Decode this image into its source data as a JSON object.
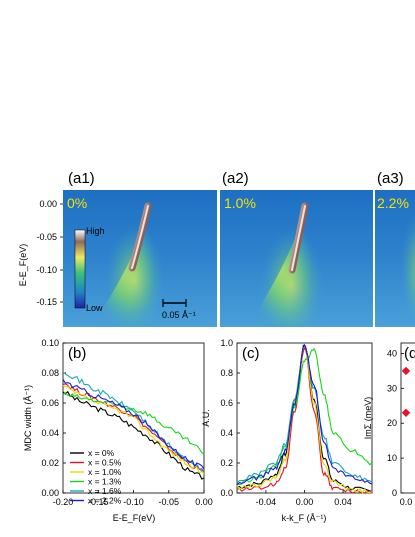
{
  "figure": {
    "labels": {
      "a1": "(a1)",
      "a2": "(a2)",
      "a3": "(a3)",
      "b": "(b)",
      "c": "(c)",
      "d": "(d"
    }
  },
  "panel_a": {
    "ylabel": "E-E_F(eV)",
    "yticks": [
      "0.00",
      "-0.05",
      "-0.10",
      "-0.15"
    ],
    "dopings": [
      "0%",
      "1.0%",
      "2.2%"
    ],
    "colorbar_high": "High",
    "colorbar_low": "Low",
    "scalebar_label": "0.05 Å⁻¹"
  },
  "chart_data": [
    {
      "id": "b",
      "type": "line",
      "title": "",
      "xlabel": "E-E_F(eV)",
      "ylabel": "MDC width (Å⁻¹)",
      "xlim": [
        -0.2,
        0.0
      ],
      "ylim": [
        0.0,
        0.1
      ],
      "xticks": [
        "-0.20",
        "-0.15",
        "-0.10",
        "-0.05",
        "0.00"
      ],
      "yticks": [
        "0.00",
        "0.02",
        "0.04",
        "0.06",
        "0.08",
        "0.10"
      ],
      "legend_position": "bottom-left",
      "x": [
        -0.2,
        -0.18,
        -0.16,
        -0.14,
        -0.12,
        -0.1,
        -0.08,
        -0.06,
        -0.04,
        -0.02,
        0.0
      ],
      "series": [
        {
          "name": "x = 0%",
          "color": "#000000",
          "values": [
            0.068,
            0.062,
            0.058,
            0.054,
            0.05,
            0.044,
            0.038,
            0.03,
            0.022,
            0.014,
            0.01
          ]
        },
        {
          "name": "x = 0.5%",
          "color": "#e8112d",
          "values": [
            0.074,
            0.068,
            0.064,
            0.06,
            0.056,
            0.052,
            0.043,
            0.034,
            0.026,
            0.019,
            0.014
          ]
        },
        {
          "name": "x = 1.0%",
          "color": "#e6d800",
          "values": [
            0.071,
            0.066,
            0.062,
            0.058,
            0.055,
            0.05,
            0.041,
            0.032,
            0.025,
            0.018,
            0.013
          ]
        },
        {
          "name": "x = 1.3%",
          "color": "#17d817",
          "values": [
            0.066,
            0.064,
            0.062,
            0.06,
            0.058,
            0.056,
            0.053,
            0.046,
            0.04,
            0.034,
            0.026
          ]
        },
        {
          "name": "x = 1.6%",
          "color": "#1aa7b5",
          "values": [
            0.082,
            0.076,
            0.07,
            0.066,
            0.06,
            0.055,
            0.046,
            0.036,
            0.028,
            0.02,
            0.015
          ]
        },
        {
          "name": "x = 2.2%",
          "color": "#1a1ad0",
          "values": [
            0.075,
            0.07,
            0.066,
            0.062,
            0.058,
            0.053,
            0.045,
            0.036,
            0.028,
            0.021,
            0.016
          ]
        }
      ]
    },
    {
      "id": "c",
      "type": "line",
      "title": "",
      "xlabel": "k-k_F (Å⁻¹)",
      "ylabel": "A.U.",
      "xlim": [
        -0.07,
        0.07
      ],
      "ylim": [
        0.0,
        1.0
      ],
      "xticks": [
        "-0.04",
        "0.00",
        "0.04"
      ],
      "yticks": [
        "0.0",
        "0.2",
        "0.4",
        "0.6",
        "0.8",
        "1.0"
      ],
      "x": [
        -0.07,
        -0.05,
        -0.03,
        -0.02,
        -0.01,
        0.0,
        0.01,
        0.02,
        0.03,
        0.05,
        0.07
      ],
      "series": [
        {
          "color": "#000000",
          "values": [
            0.04,
            0.06,
            0.12,
            0.26,
            0.62,
            0.99,
            0.62,
            0.24,
            0.08,
            0.03,
            0.01
          ]
        },
        {
          "color": "#e8112d",
          "values": [
            0.02,
            0.03,
            0.06,
            0.16,
            0.55,
            0.97,
            0.55,
            0.13,
            0.03,
            0.01,
            0.0
          ]
        },
        {
          "color": "#e6d800",
          "values": [
            0.04,
            0.05,
            0.1,
            0.22,
            0.62,
            0.99,
            0.6,
            0.2,
            0.07,
            0.02,
            0.01
          ]
        },
        {
          "color": "#17d817",
          "values": [
            0.06,
            0.1,
            0.18,
            0.3,
            0.58,
            0.88,
            0.95,
            0.66,
            0.4,
            0.28,
            0.2
          ]
        },
        {
          "color": "#1aa7b5",
          "values": [
            0.08,
            0.12,
            0.2,
            0.32,
            0.64,
            0.99,
            0.7,
            0.38,
            0.2,
            0.12,
            0.07
          ]
        },
        {
          "color": "#1a1ad0",
          "values": [
            0.06,
            0.1,
            0.16,
            0.28,
            0.6,
            0.99,
            0.72,
            0.34,
            0.16,
            0.1,
            0.06
          ]
        }
      ]
    },
    {
      "id": "d",
      "type": "scatter",
      "title": "",
      "ylabel": "ImΣ (meV)",
      "ylim": [
        0,
        43
      ],
      "xticks": [
        "0.0"
      ],
      "yticks": [
        "0",
        "10",
        "20",
        "30",
        "40"
      ],
      "x": [
        0.0,
        0.0
      ],
      "values": [
        35,
        23
      ],
      "marker_color": "#e8112d"
    }
  ]
}
